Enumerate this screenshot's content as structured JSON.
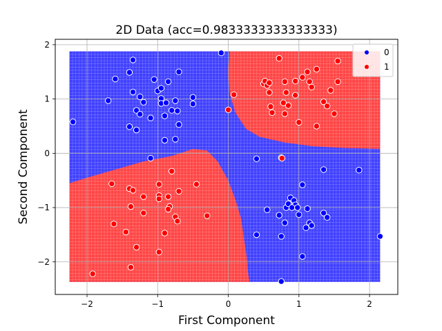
{
  "chart_data": {
    "type": "scatter",
    "title": "2D Data (acc=0.9833333333333333)",
    "xlabel": "First Component",
    "ylabel": "Second Component",
    "xlim": [
      -2.45,
      2.4
    ],
    "ylim": [
      -2.6,
      2.1
    ],
    "xticks": [
      -2,
      -1,
      0,
      1,
      2
    ],
    "yticks": [
      -2,
      -1,
      0,
      1,
      2
    ],
    "grid": true,
    "legend_position": "top-right",
    "decision_region_colors": {
      "0": "#4040ff",
      "1": "#ff4545"
    },
    "point_colors": {
      "0": "#0000ff",
      "1": "#ff0000"
    },
    "series": [
      {
        "name": "0",
        "points": [
          [
            -2.2,
            0.58
          ],
          [
            -1.6,
            1.37
          ],
          [
            -1.7,
            0.97
          ],
          [
            -1.4,
            1.49
          ],
          [
            -1.35,
            1.72
          ],
          [
            -1.35,
            1.13
          ],
          [
            -1.25,
            1.04
          ],
          [
            -1.2,
            0.94
          ],
          [
            -1.3,
            0.79
          ],
          [
            -1.3,
            0.43
          ],
          [
            -1.4,
            0.49
          ],
          [
            -1.25,
            0.72
          ],
          [
            -1.1,
            0.65
          ],
          [
            -1.05,
            1.36
          ],
          [
            -1.0,
            1.15
          ],
          [
            -0.95,
            1.2
          ],
          [
            -0.95,
            1.01
          ],
          [
            -0.95,
            0.92
          ],
          [
            -0.88,
            0.93
          ],
          [
            -0.9,
            0.69
          ],
          [
            -0.8,
            0.79
          ],
          [
            -0.75,
            0.97
          ],
          [
            -0.72,
            0.78
          ],
          [
            -0.7,
            1.5
          ],
          [
            -0.7,
            0.53
          ],
          [
            -0.75,
            0.26
          ],
          [
            -0.9,
            0.24
          ],
          [
            -0.85,
            1.32
          ],
          [
            -0.5,
            1.03
          ],
          [
            -0.5,
            0.91
          ],
          [
            -0.1,
            1.85
          ],
          [
            -1.1,
            -0.09
          ],
          [
            0.4,
            -0.1
          ],
          [
            0.75,
            -0.08
          ],
          [
            1.05,
            -0.58
          ],
          [
            1.35,
            -0.3
          ],
          [
            1.85,
            -0.31
          ],
          [
            0.55,
            -1.04
          ],
          [
            0.72,
            -1.14
          ],
          [
            0.8,
            -1.28
          ],
          [
            0.75,
            -1.53
          ],
          [
            0.82,
            -1.0
          ],
          [
            0.85,
            -0.93
          ],
          [
            0.88,
            -0.82
          ],
          [
            0.93,
            -0.87
          ],
          [
            0.95,
            -0.95
          ],
          [
            0.9,
            -1.0
          ],
          [
            0.98,
            -1.0
          ],
          [
            1.0,
            -1.13
          ],
          [
            1.1,
            -1.37
          ],
          [
            1.12,
            -1.02
          ],
          [
            1.15,
            -1.28
          ],
          [
            1.18,
            -1.33
          ],
          [
            1.35,
            -1.1
          ],
          [
            1.4,
            -1.18
          ],
          [
            1.05,
            -1.9
          ],
          [
            0.4,
            -1.5
          ],
          [
            0.75,
            -2.36
          ],
          [
            2.15,
            -1.53
          ]
        ]
      },
      {
        "name": "1",
        "points": [
          [
            0.0,
            0.8
          ],
          [
            0.08,
            1.08
          ],
          [
            0.5,
            1.28
          ],
          [
            0.52,
            1.33
          ],
          [
            0.55,
            1.25
          ],
          [
            0.58,
            1.12
          ],
          [
            0.6,
            0.86
          ],
          [
            0.62,
            0.75
          ],
          [
            0.58,
            1.3
          ],
          [
            0.72,
            1.75
          ],
          [
            0.8,
            1.32
          ],
          [
            0.78,
            0.93
          ],
          [
            0.8,
            0.73
          ],
          [
            0.82,
            1.12
          ],
          [
            0.85,
            0.88
          ],
          [
            0.95,
            1.33
          ],
          [
            0.95,
            1.07
          ],
          [
            1.0,
            0.57
          ],
          [
            1.05,
            1.4
          ],
          [
            1.12,
            1.5
          ],
          [
            1.15,
            1.32
          ],
          [
            1.18,
            1.22
          ],
          [
            1.25,
            1.55
          ],
          [
            1.25,
            0.5
          ],
          [
            1.35,
            0.95
          ],
          [
            1.4,
            0.87
          ],
          [
            1.45,
            1.16
          ],
          [
            1.5,
            0.73
          ],
          [
            1.55,
            1.32
          ],
          [
            1.55,
            1.7
          ],
          [
            0.76,
            -0.09
          ],
          [
            -1.65,
            -0.56
          ],
          [
            -1.62,
            -1.3
          ],
          [
            -1.45,
            -1.45
          ],
          [
            -1.4,
            -0.65
          ],
          [
            -1.38,
            -0.98
          ],
          [
            -1.35,
            -0.68
          ],
          [
            -1.38,
            -2.1
          ],
          [
            -1.3,
            -1.73
          ],
          [
            -1.2,
            -0.8
          ],
          [
            -1.2,
            -1.1
          ],
          [
            -0.98,
            -0.57
          ],
          [
            -0.98,
            -0.78
          ],
          [
            -0.98,
            -0.84
          ],
          [
            -0.98,
            -1.82
          ],
          [
            -0.9,
            -1.47
          ],
          [
            -0.85,
            -0.8
          ],
          [
            -0.83,
            -0.98
          ],
          [
            -0.85,
            -1.03
          ],
          [
            -0.8,
            -0.33
          ],
          [
            -0.75,
            -1.17
          ],
          [
            -0.72,
            -1.25
          ],
          [
            -0.7,
            -0.7
          ],
          [
            -0.45,
            -0.57
          ],
          [
            -0.3,
            -1.15
          ],
          [
            -1.92,
            -2.22
          ]
        ]
      }
    ]
  }
}
